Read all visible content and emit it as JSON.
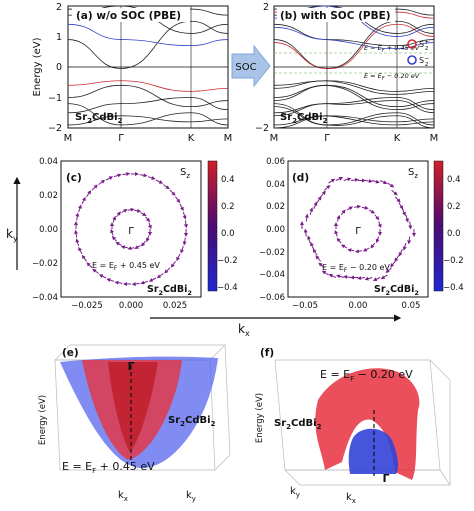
{
  "colors": {
    "band": "#222222",
    "red_band": "#cc2a2a",
    "blue_band": "#3343c8",
    "spin_arrow": "#7a1f8a",
    "arrow_blue": "#7fa6d8",
    "cbar_top": "#d0202a",
    "cbar_mid": "#4b0b72",
    "cbar_bottom": "#2028d0"
  },
  "panel_a": {
    "title": "(a) w/o SOC (PBE)",
    "material": "Sr",
    "sub1": "2",
    "mid": "CdBi",
    "sub2": "2",
    "ylabel": "Energy (eV)",
    "yticks": [
      "2",
      "1",
      "0",
      "−1",
      "−2"
    ],
    "kpoints": [
      "M",
      "Γ",
      "K",
      "M"
    ]
  },
  "soc_label": "SOC",
  "panel_b": {
    "title": "(b) with SOC (PBE)",
    "material": "Sr",
    "sub1": "2",
    "mid": "CdBi",
    "sub2": "2",
    "ytick_top": "2",
    "ytick_bottom": "−2",
    "kpoints": [
      "M",
      "Γ",
      "K",
      "M"
    ],
    "ann_upper": "E = E",
    "ann_upper_sub": "F",
    "ann_upper_val": " + 0.45 eV",
    "ann_lower": "E = E",
    "ann_lower_sub": "F",
    "ann_lower_val": " − 0.20 eV",
    "legend_plus": "S",
    "legend_plus_sup": "+",
    "legend_plus_sub": "z",
    "legend_minus": "S",
    "legend_minus_sup": "−",
    "legend_minus_sub": "z"
  },
  "panel_c": {
    "label": "(c)",
    "sz": "S",
    "sz_sub": "z",
    "gamma": "Γ",
    "energy": "E = E",
    "energy_sub": "F",
    "energy_val": " + 0.45 eV",
    "material": "Sr",
    "sub1": "2",
    "mid": "CdBi",
    "sub2": "2",
    "xticks": [
      "−0.025",
      "0.000",
      "0.025"
    ],
    "yticks": [
      "0.04",
      "0.02",
      "0.00",
      "−0.02",
      "−0.04"
    ],
    "cbar_ticks": [
      "0.4",
      "0.2",
      "0.0",
      "−0.2",
      "−0.4"
    ]
  },
  "panel_d": {
    "label": "(d)",
    "sz": "S",
    "sz_sub": "z",
    "gamma": "Γ",
    "energy": "E = E",
    "energy_sub": "F",
    "energy_val": " − 0.20 eV",
    "material": "Sr",
    "sub1": "2",
    "mid": "CdBi",
    "sub2": "2",
    "xticks": [
      "−0.05",
      "0.00",
      "0.05"
    ],
    "yticks": [
      "0.06",
      "0.04",
      "0.02",
      "0.00",
      "−0.02",
      "−0.04",
      "−0.06"
    ],
    "cbar_ticks": [
      "0.4",
      "0.2",
      "0.0",
      "−0.2",
      "−0.4"
    ]
  },
  "axes": {
    "ky": "k",
    "ky_sub": "y",
    "kx": "k",
    "kx_sub": "x"
  },
  "panel_e": {
    "label": "(e)",
    "zlabel": "Energy (eV)",
    "gamma": "Γ",
    "material": "Sr",
    "sub1": "2",
    "mid": "CdBi",
    "sub2": "2",
    "energy": "E = E",
    "energy_sub": "F",
    "energy_val": " + 0.45 eV",
    "kx": "k",
    "kx_sub": "x",
    "ky": "k",
    "ky_sub": "y"
  },
  "panel_f": {
    "label": "(f)",
    "zlabel": "Energy (eV)",
    "gamma": "Γ",
    "material": "Sr",
    "sub1": "2",
    "mid": "CdBi",
    "sub2": "2",
    "energy": "E = E",
    "energy_sub": "F",
    "energy_val": " − 0.20 eV",
    "kx": "k",
    "kx_sub": "x",
    "ky": "k",
    "ky_sub": "y"
  }
}
